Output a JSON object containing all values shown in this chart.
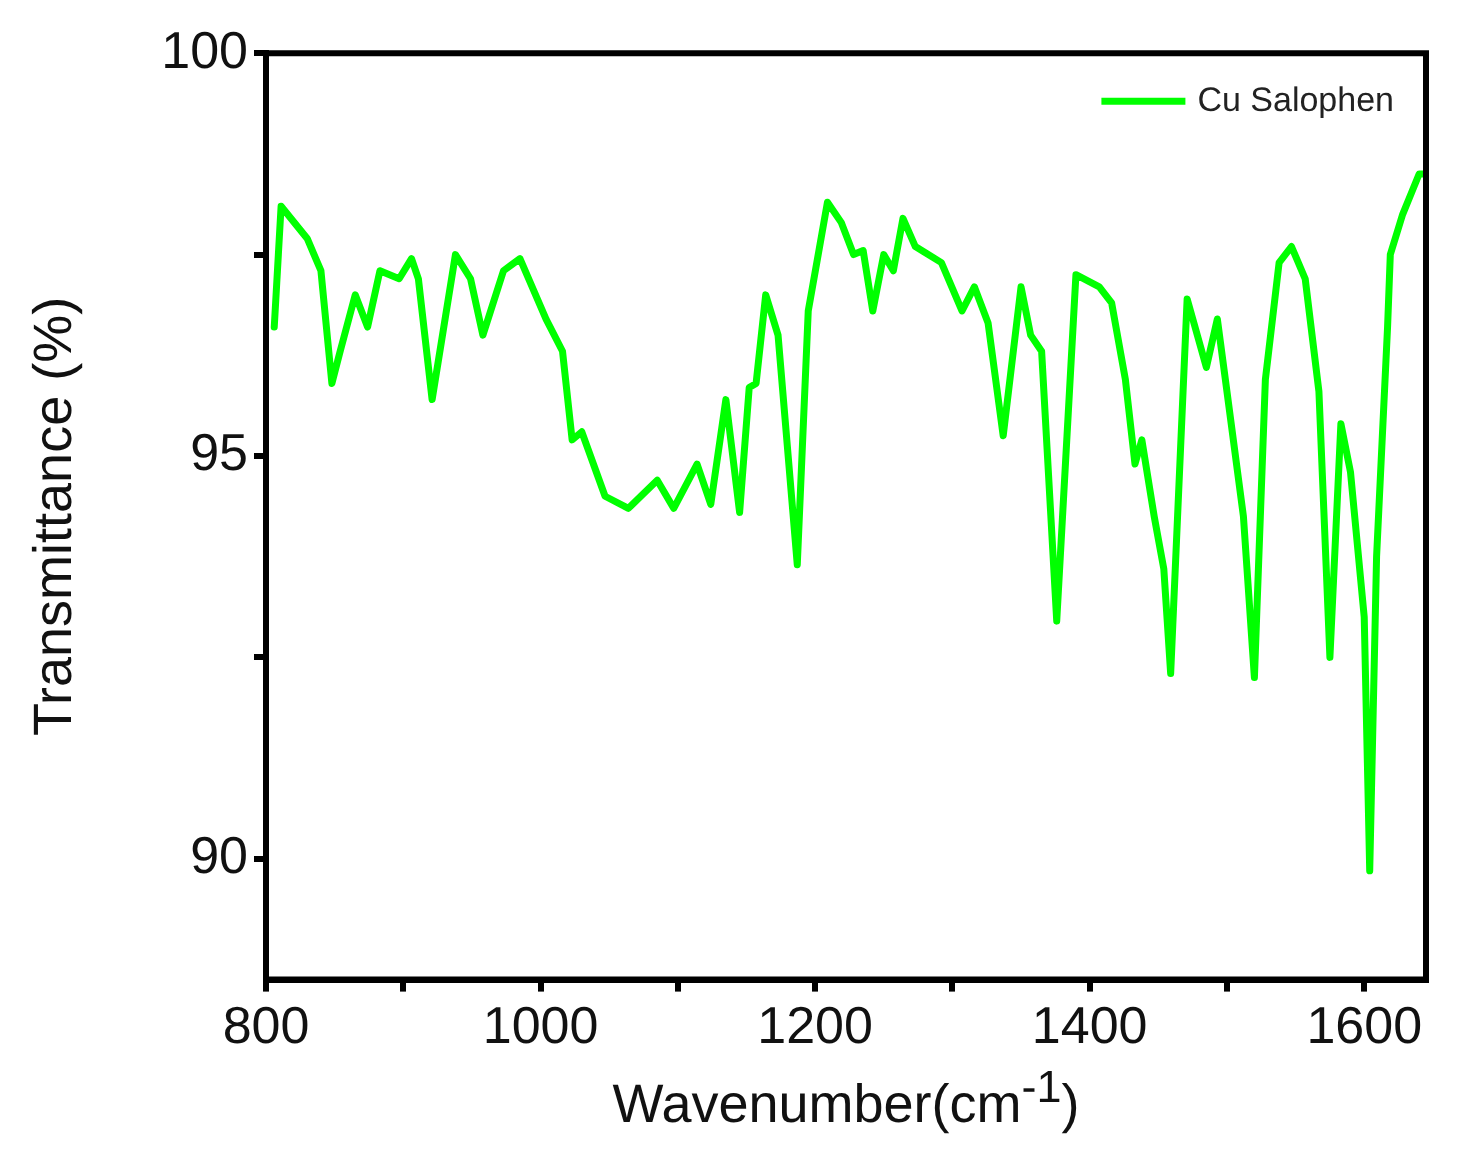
{
  "chart_data": {
    "type": "line",
    "xlabel": "Wavenumber(cm$^{-1}$)",
    "ylabel": "Transmittance (%)",
    "xlim": [
      800,
      1645
    ],
    "ylim": [
      88.5,
      100
    ],
    "xticks": [
      800,
      {
        "value": 900,
        "label": null
      },
      1000,
      {
        "value": 1100,
        "label": null
      },
      1200,
      {
        "value": 1300,
        "label": null
      },
      1400,
      {
        "value": 1500,
        "label": null
      },
      1600
    ],
    "yticks": [
      90,
      {
        "value": 92.5,
        "label": null
      },
      95,
      {
        "value": 97.5,
        "label": null
      },
      100
    ],
    "grid": false,
    "legend": "top right",
    "marker": "none",
    "line_style": "solid",
    "series": [
      {
        "name": "Cu Salophen",
        "color": "#00ff00",
        "x": [
          806,
          811,
          830,
          840,
          848,
          854,
          865,
          874,
          883,
          897,
          906,
          911,
          921,
          938,
          949,
          958,
          973,
          985,
          1004,
          1016,
          1023,
          1030,
          1047,
          1064,
          1085,
          1097,
          1114,
          1124,
          1135,
          1145,
          1152,
          1157,
          1164,
          1173,
          1187,
          1195,
          1209,
          1219,
          1228,
          1235,
          1242,
          1250,
          1257,
          1264,
          1273,
          1292,
          1307,
          1316,
          1326,
          1337,
          1350,
          1357,
          1365,
          1376,
          1390,
          1407,
          1416,
          1426,
          1433,
          1438,
          1447,
          1454,
          1459,
          1471,
          1485,
          1493,
          1500,
          1512,
          1520,
          1528,
          1538,
          1547,
          1557,
          1567,
          1575,
          1583,
          1590,
          1600,
          1604,
          1609,
          1617,
          1619,
          1628,
          1640,
          1645
        ],
        "values": [
          96.6,
          98.1,
          97.7,
          97.3,
          95.9,
          96.3,
          97.0,
          96.6,
          97.3,
          97.2,
          97.45,
          97.2,
          95.7,
          97.5,
          97.2,
          96.5,
          97.3,
          97.45,
          96.7,
          96.3,
          95.2,
          95.3,
          94.5,
          94.35,
          94.7,
          94.35,
          94.9,
          94.4,
          95.7,
          94.3,
          95.85,
          95.9,
          97.0,
          96.5,
          93.65,
          96.8,
          98.15,
          97.9,
          97.5,
          97.55,
          96.8,
          97.5,
          97.3,
          97.95,
          97.6,
          97.4,
          96.8,
          97.1,
          96.65,
          95.25,
          97.1,
          96.5,
          96.3,
          92.95,
          97.25,
          97.1,
          96.9,
          95.95,
          94.9,
          95.2,
          94.25,
          93.6,
          92.3,
          96.95,
          96.1,
          96.7,
          95.8,
          94.25,
          92.25,
          95.95,
          97.4,
          97.6,
          97.2,
          95.8,
          92.5,
          95.4,
          94.8,
          93.0,
          89.85,
          93.75,
          96.6,
          97.5,
          98.0,
          98.5,
          98.5
        ]
      }
    ]
  }
}
